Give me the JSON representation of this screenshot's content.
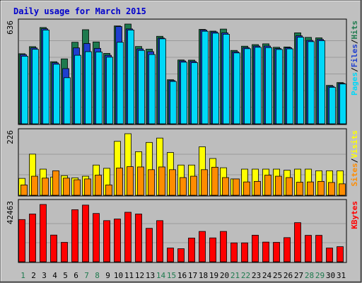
{
  "chart_data": {
    "title": "Daily usage for March 2015",
    "type": "bar",
    "categories": [
      "1",
      "2",
      "3",
      "4",
      "5",
      "6",
      "7",
      "8",
      "9",
      "10",
      "11",
      "12",
      "13",
      "14",
      "15",
      "16",
      "17",
      "18",
      "19",
      "20",
      "21",
      "22",
      "23",
      "24",
      "25",
      "26",
      "27",
      "28",
      "29",
      "30",
      "31"
    ],
    "weekend_days": [
      "1",
      "7",
      "8",
      "14",
      "15",
      "21",
      "22",
      "28",
      "29"
    ],
    "colors": {
      "background": "#c0c0c0",
      "panel": "#bdbdbd",
      "title": "#0000cc",
      "hits": "#1e7a4e",
      "files": "#1f3fcf",
      "pages": "#00d8f8",
      "visits": "#ffff00",
      "sites": "#ff8c00",
      "kbytes": "#ff0000",
      "weekday_label": "#000000",
      "weekend_label": "#1e7a4e"
    },
    "panels": [
      {
        "max_label": "636",
        "ymax": 636,
        "series": [
          {
            "name": "Hits",
            "values": [
              447,
              492,
              614,
              396,
              414,
              520,
              600,
              522,
              449,
              624,
              636,
              493,
              476,
              558,
              281,
              407,
              406,
              602,
              591,
              604,
              468,
              495,
              505,
              510,
              488,
              490,
              580,
              551,
              548,
              245,
              263
            ]
          },
          {
            "name": "Files",
            "values": [
              441,
              484,
              606,
              389,
              352,
              484,
              512,
              481,
              437,
              620,
              605,
              478,
              460,
              547,
              276,
              401,
              398,
              598,
              586,
              580,
              459,
              486,
              496,
              496,
              480,
              485,
              561,
              532,
              538,
              239,
              258
            ]
          },
          {
            "name": "Pages",
            "values": [
              431,
              475,
              598,
              380,
              294,
              437,
              460,
              458,
              425,
              520,
              598,
              468,
              442,
              542,
              270,
              393,
              390,
              590,
              578,
              571,
              452,
              479,
              488,
              486,
              474,
              478,
              552,
              524,
              530,
              233,
              254
            ]
          }
        ],
        "legend": [
          {
            "text": "Hits",
            "color": "hits"
          },
          {
            "text": "Files",
            "color": "files"
          },
          {
            "text": "Pages",
            "color": "pages"
          }
        ]
      },
      {
        "max_label": "226",
        "ymax": 226,
        "series": [
          {
            "name": "Visits",
            "values": [
              62,
              151,
              96,
              67,
              72,
              64,
              70,
              111,
              99,
              198,
              226,
              160,
              194,
              210,
              157,
              111,
              111,
              178,
              135,
              101,
              60,
              96,
              96,
              96,
              96,
              92,
              96,
              96,
              90,
              90,
              90
            ]
          },
          {
            "name": "Sites",
            "values": [
              38,
              70,
              63,
              90,
              63,
              57,
              60,
              74,
              38,
              100,
              105,
              104,
              94,
              104,
              94,
              65,
              70,
              94,
              103,
              65,
              60,
              49,
              51,
              74,
              70,
              65,
              48,
              49,
              51,
              47,
              42
            ]
          }
        ],
        "legend": [
          {
            "text": "Visits",
            "color": "visits"
          },
          {
            "text": "Sites",
            "color": "sites"
          }
        ]
      },
      {
        "max_label": "42463",
        "ymax": 42463,
        "series": [
          {
            "name": "KBytes",
            "values": [
              31300,
              35400,
              42463,
              19800,
              14400,
              38600,
              42000,
              35800,
              30500,
              31700,
              36700,
              35400,
              24800,
              30500,
              10200,
              9700,
              17600,
              22500,
              17700,
              22500,
              14000,
              14000,
              19700,
              14600,
              14400,
              17900,
              29000,
              19600,
              19600,
              10200,
              11200
            ]
          }
        ],
        "legend": [
          {
            "text": "KBytes",
            "color": "kbytes"
          }
        ]
      }
    ]
  }
}
